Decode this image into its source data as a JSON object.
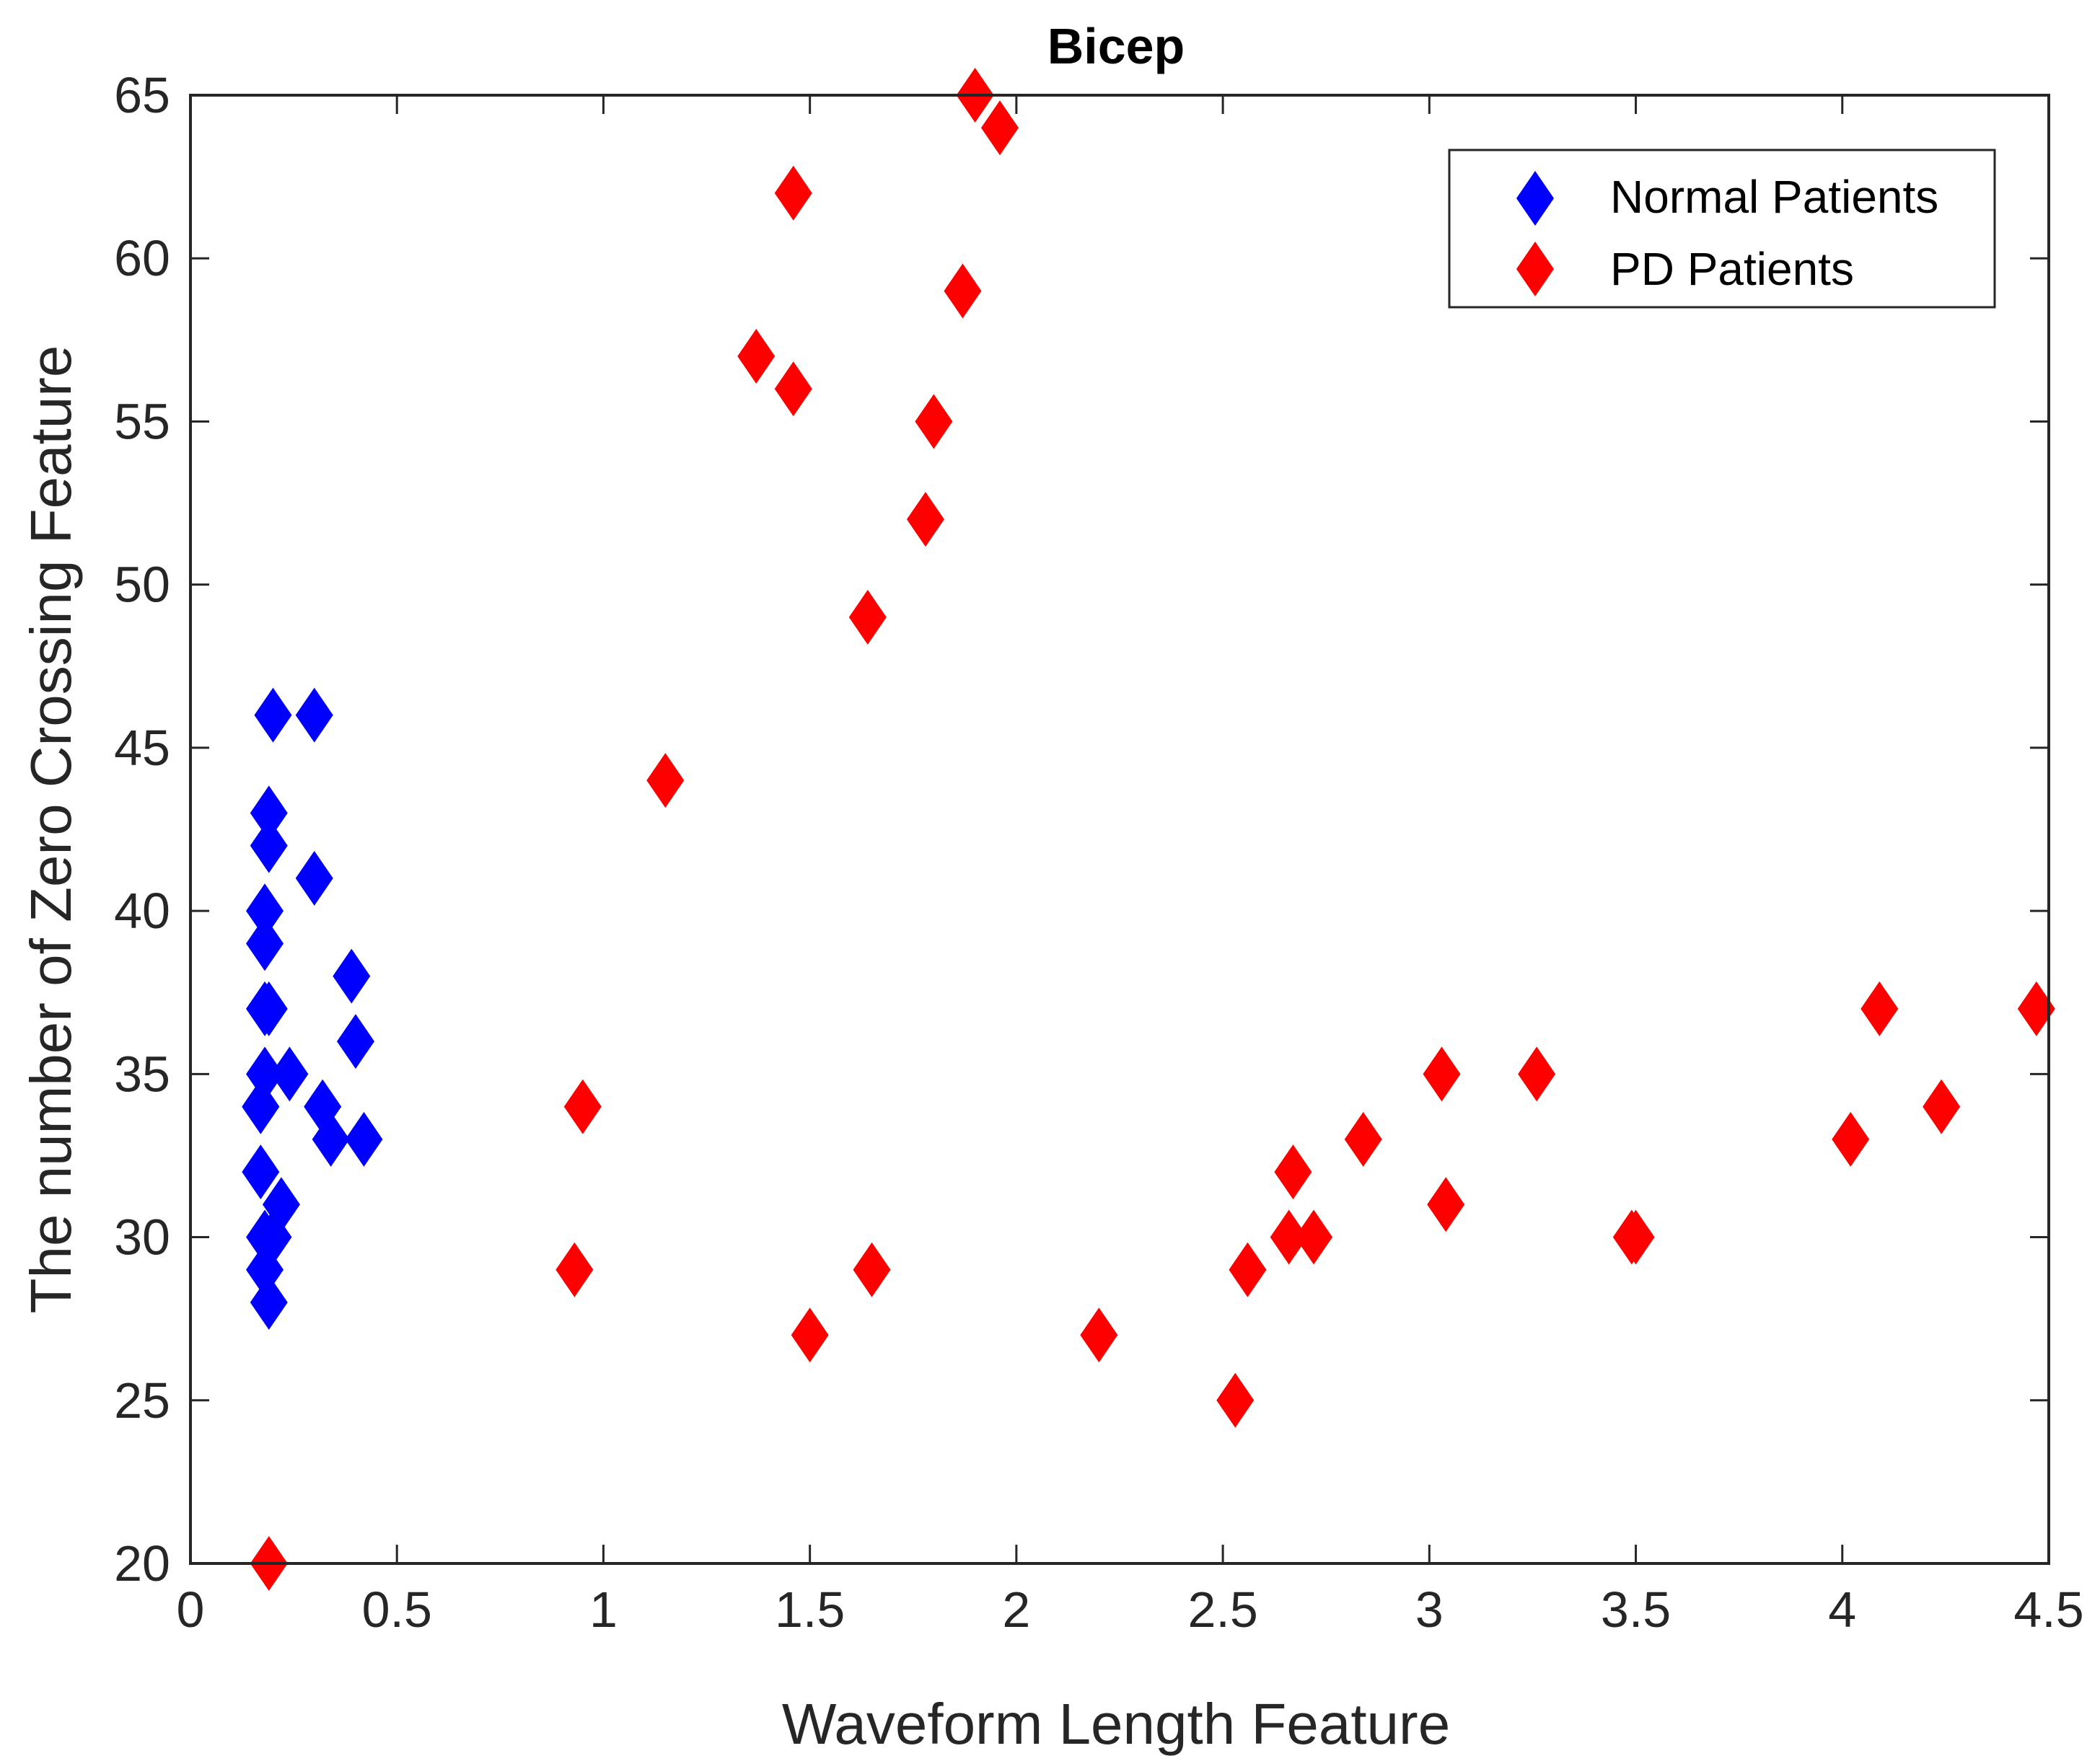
{
  "chart_data": {
    "type": "scatter",
    "title": "Bicep",
    "xlabel": "Waveform Length Feature",
    "ylabel": "The number of Zero Crossing Feature",
    "xlim": [
      0,
      4.5
    ],
    "ylim": [
      20,
      65
    ],
    "xticks": [
      0,
      0.5,
      1,
      1.5,
      2,
      2.5,
      3,
      3.5,
      4,
      4.5
    ],
    "xtick_labels": [
      "0",
      "0.5",
      "1",
      "1.5",
      "2",
      "2.5",
      "3",
      "3.5",
      "4",
      "4.5"
    ],
    "yticks": [
      20,
      25,
      30,
      35,
      40,
      45,
      50,
      55,
      60,
      65
    ],
    "ytick_labels": [
      "20",
      "25",
      "30",
      "35",
      "40",
      "45",
      "50",
      "55",
      "60",
      "65"
    ],
    "grid": false,
    "legend_position": "top-right",
    "marker": "diamond",
    "series": [
      {
        "name": "Normal Patients",
        "color": "#0000ff",
        "x": [
          0.2,
          0.3,
          0.19,
          0.19,
          0.3,
          0.18,
          0.18,
          0.39,
          0.18,
          0.19,
          0.4,
          0.18,
          0.24,
          0.17,
          0.32,
          0.17,
          0.34,
          0.42,
          0.17,
          0.22,
          0.2,
          0.18,
          0.18,
          0.19
        ],
        "y": [
          46,
          46,
          43,
          42,
          41,
          40,
          39,
          38,
          37,
          37,
          36,
          35,
          35,
          34,
          34,
          34,
          33,
          33,
          32,
          31,
          30,
          30,
          29,
          28
        ]
      },
      {
        "name": "PD Patients",
        "color": "#ff0000",
        "x": [
          1.9,
          1.96,
          1.46,
          1.87,
          1.37,
          1.46,
          1.8,
          1.78,
          1.64,
          1.15,
          0.95,
          0.93,
          1.5,
          1.65,
          2.2,
          2.53,
          2.56,
          2.67,
          2.66,
          2.72,
          2.84,
          3.03,
          3.04,
          3.26,
          3.49,
          3.5,
          4.02,
          4.09,
          4.24,
          4.47,
          0.19
        ],
        "y": [
          65,
          64,
          62,
          59,
          57,
          56,
          55,
          52,
          49,
          44,
          34,
          29,
          27,
          29,
          27,
          25,
          29,
          32,
          30,
          30,
          33,
          35,
          31,
          35,
          30,
          30,
          33,
          37,
          34,
          37,
          20
        ]
      }
    ]
  }
}
